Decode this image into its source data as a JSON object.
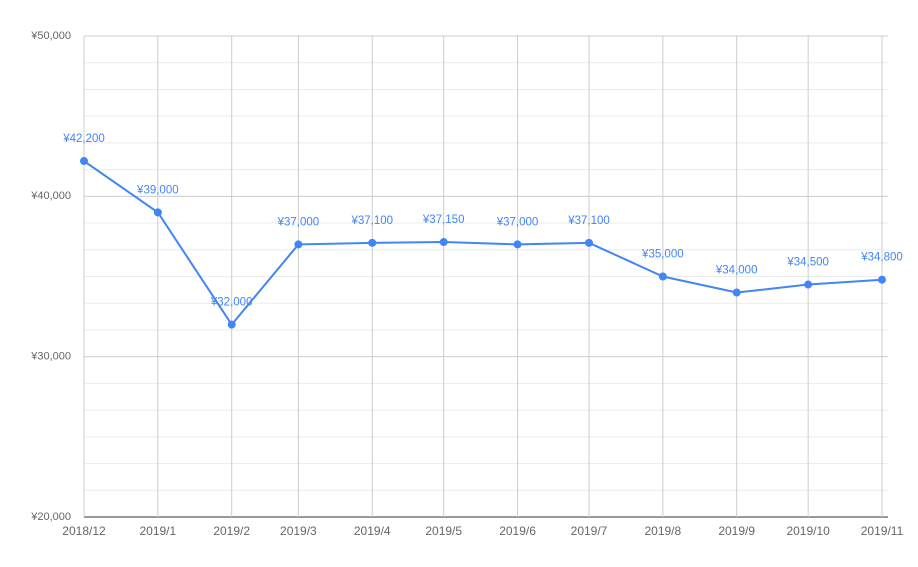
{
  "chart_data": {
    "type": "line",
    "x": [
      "2018/12",
      "2019/1",
      "2019/2",
      "2019/3",
      "2019/4",
      "2019/5",
      "2019/6",
      "2019/7",
      "2019/8",
      "2019/9",
      "2019/10",
      "2019/11"
    ],
    "series": [
      {
        "color": "#4285f4",
        "values": [
          42200,
          39000,
          32000,
          37000,
          37100,
          37150,
          37000,
          37100,
          35000,
          34000,
          34500,
          34800
        ],
        "value_labels": [
          "¥42,200",
          "¥39,000",
          "¥32,000",
          "¥37,000",
          "¥37,100",
          "¥37,150",
          "¥37,000",
          "¥37,100",
          "¥35,000",
          "¥34,000",
          "¥34,500",
          "¥34,800"
        ]
      }
    ],
    "ylim": [
      20000,
      50000
    ],
    "yticks": [
      {
        "value": 20000,
        "label": "¥20,000"
      },
      {
        "value": 30000,
        "label": "¥30,000"
      },
      {
        "value": 40000,
        "label": "¥40,000"
      },
      {
        "value": 50000,
        "label": "¥50,000"
      }
    ],
    "grid": true
  }
}
